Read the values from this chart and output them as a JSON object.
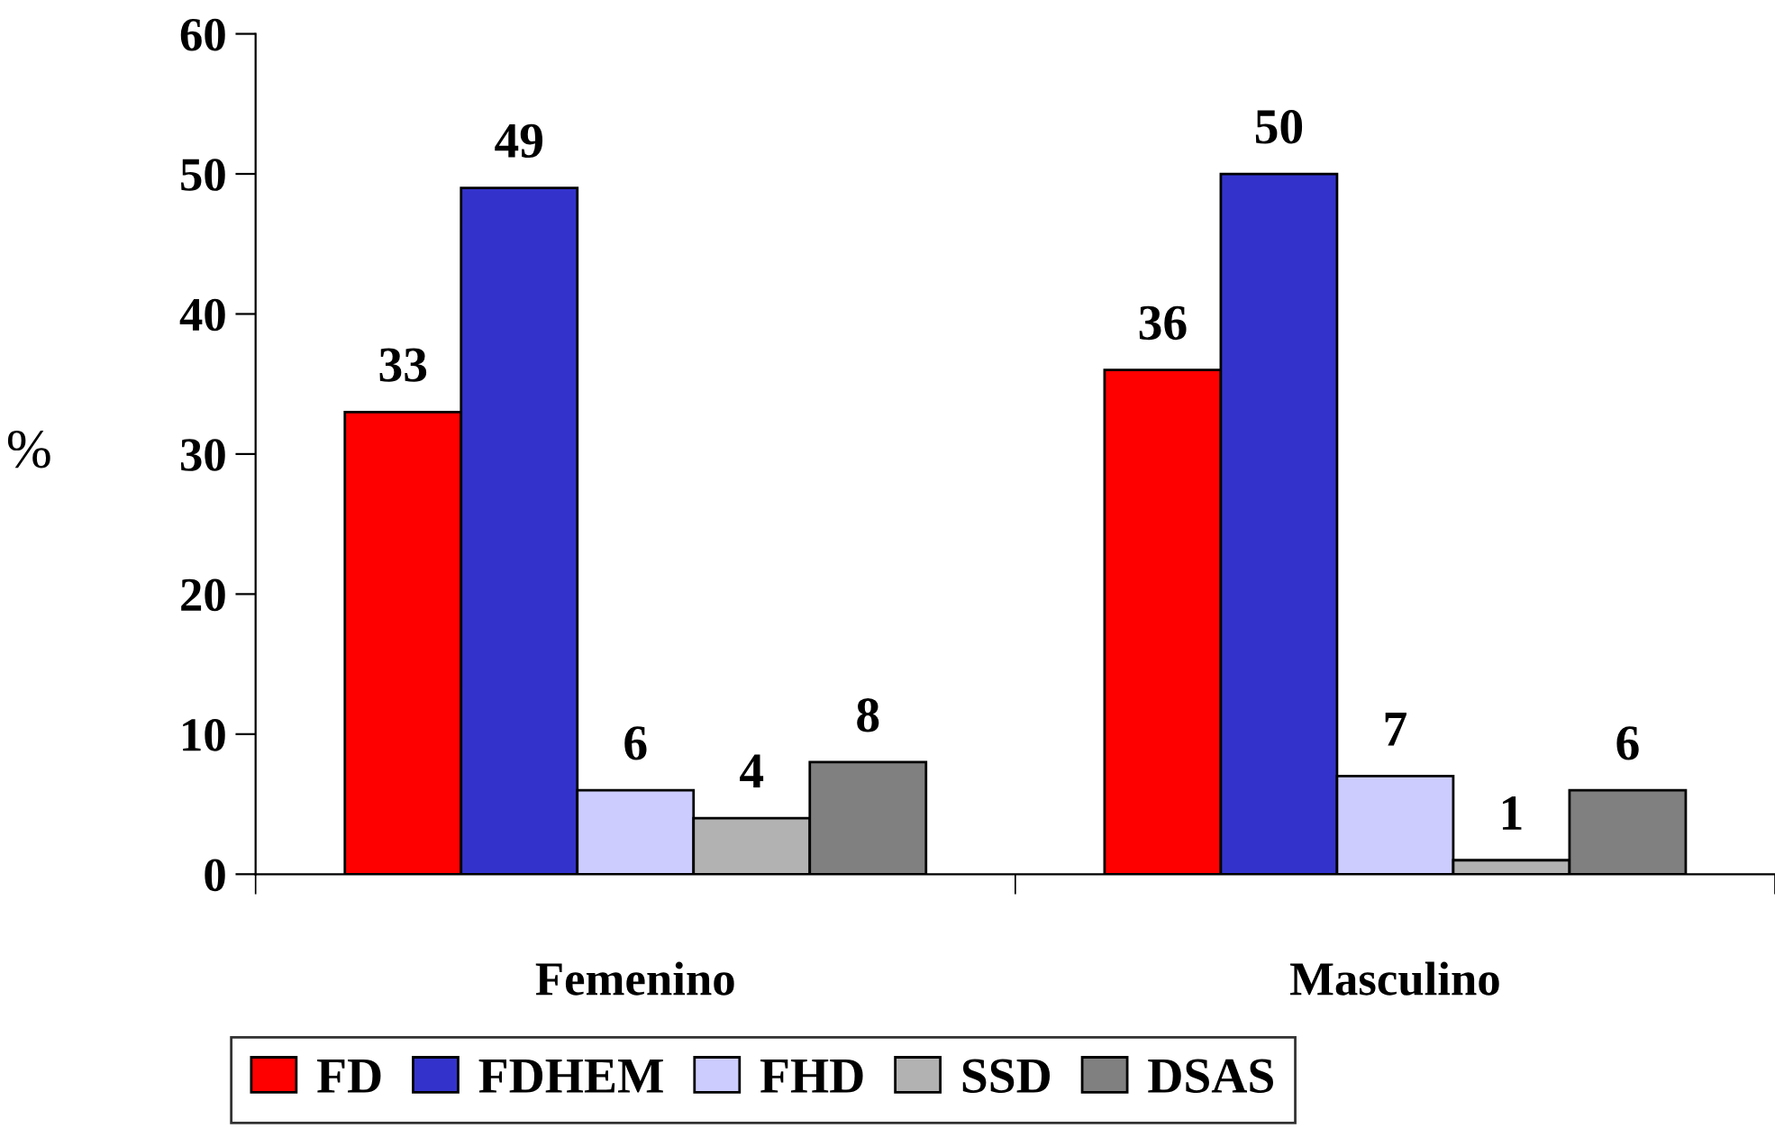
{
  "chart_data": {
    "type": "bar",
    "ylabel": "%",
    "categories": [
      "Femenino",
      "Masculino"
    ],
    "series": [
      {
        "name": "FD",
        "color": "#ff0000",
        "values": [
          33,
          36
        ]
      },
      {
        "name": "FDHEM",
        "color": "#3333cc",
        "values": [
          49,
          50
        ]
      },
      {
        "name": "FHD",
        "color": "#ccccff",
        "values": [
          6,
          7
        ]
      },
      {
        "name": "SSD",
        "color": "#b2b2b2",
        "values": [
          4,
          1
        ]
      },
      {
        "name": "DSAS",
        "color": "#808080",
        "values": [
          8,
          6
        ]
      }
    ],
    "ylim": [
      0,
      60
    ],
    "yticks": [
      0,
      10,
      20,
      30,
      40,
      50,
      60
    ],
    "data_labels": true,
    "grid": false,
    "legend": "bottom"
  }
}
